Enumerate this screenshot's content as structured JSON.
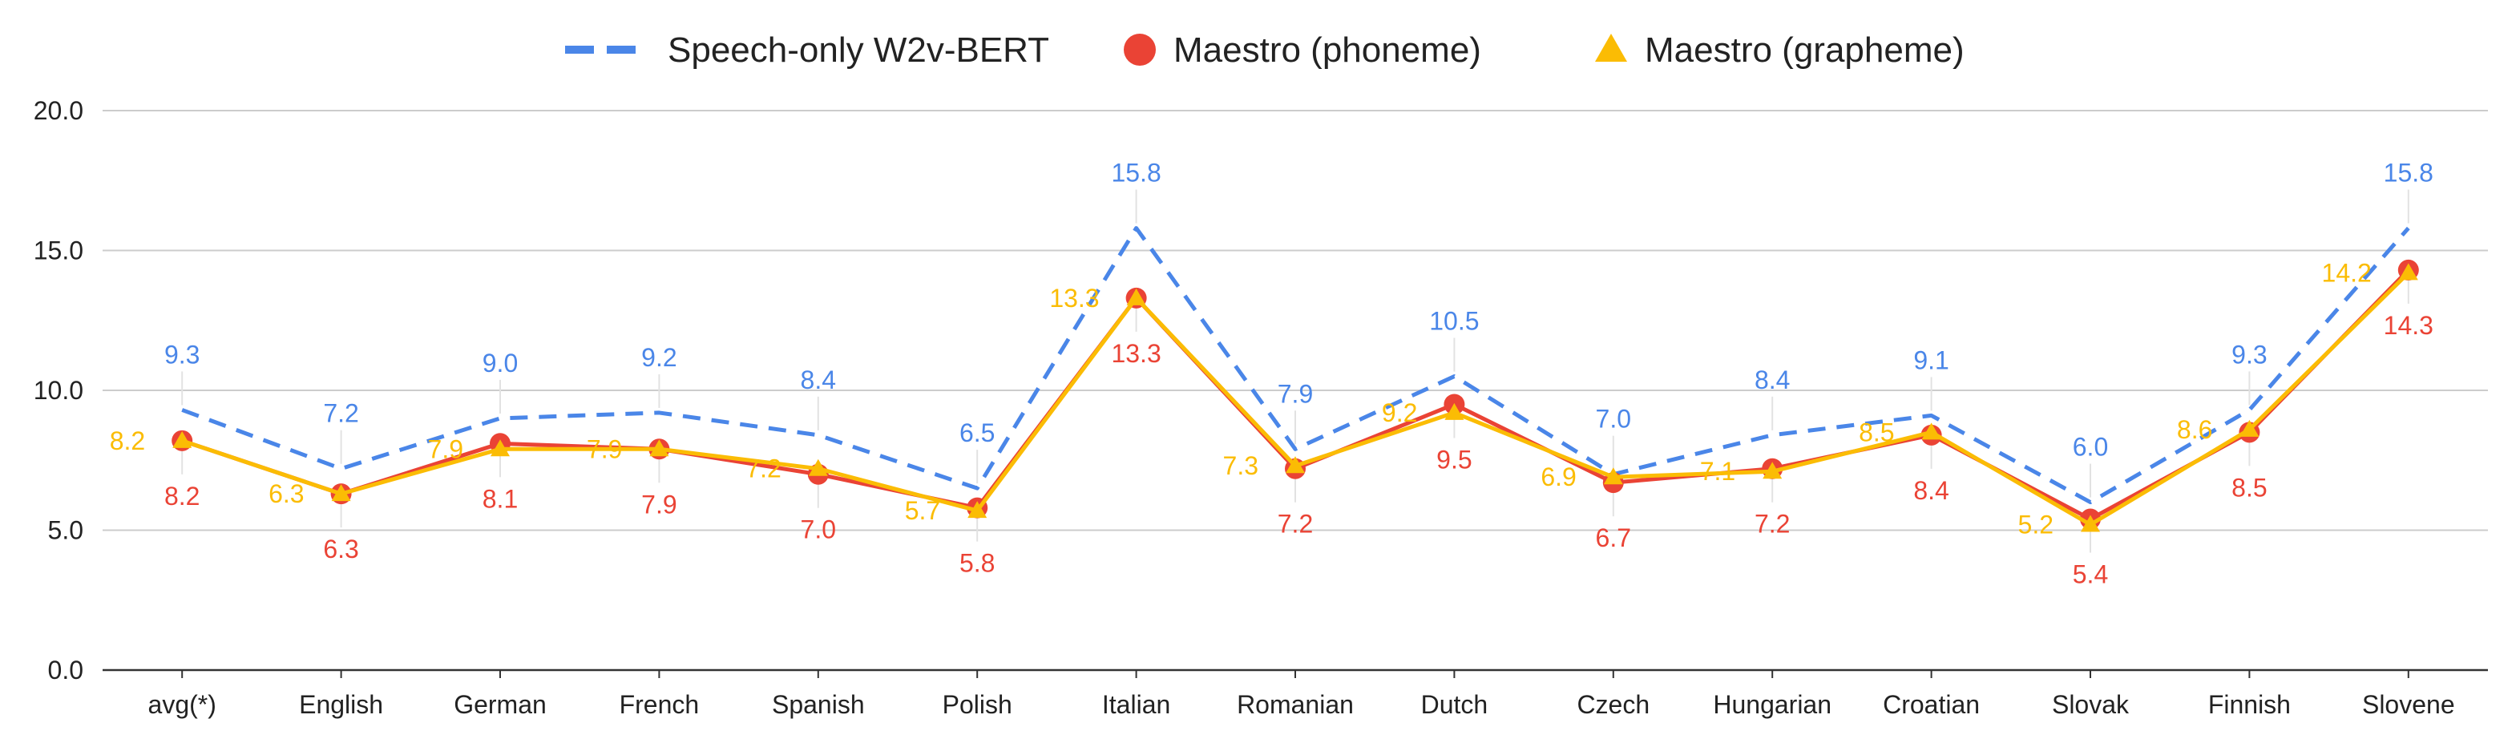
{
  "chart_data": {
    "type": "line",
    "title": "",
    "xlabel": "",
    "ylabel": "",
    "ylim": [
      0,
      20
    ],
    "yticks": [
      "0.0",
      "5.0",
      "10.0",
      "15.0",
      "20.0"
    ],
    "grid": true,
    "legend_position": "top-center",
    "categories": [
      "avg(*)",
      "English",
      "German",
      "French",
      "Spanish",
      "Polish",
      "Italian",
      "Romanian",
      "Dutch",
      "Czech",
      "Hungarian",
      "Croatian",
      "Slovak",
      "Finnish",
      "Slovene"
    ],
    "series": [
      {
        "name": "Speech-only W2v-BERT",
        "color": "#4a86e8",
        "style": "dashed",
        "marker": "none",
        "values": [
          9.3,
          7.2,
          9.0,
          9.2,
          8.4,
          6.5,
          15.8,
          7.9,
          10.5,
          7.0,
          8.4,
          9.1,
          6.0,
          9.3,
          15.8
        ],
        "labels": [
          "9.3",
          "7.2",
          "9.0",
          "9.2",
          "8.4",
          "6.5",
          "15.8",
          "7.9",
          "10.5",
          "7.0",
          "8.4",
          "9.1",
          "6.0",
          "9.3",
          "15.8"
        ]
      },
      {
        "name": "Maestro (phoneme)",
        "color": "#ea4335",
        "style": "solid",
        "marker": "circle",
        "values": [
          8.2,
          6.3,
          8.1,
          7.9,
          7.0,
          5.8,
          13.3,
          7.2,
          9.5,
          6.7,
          7.2,
          8.4,
          5.4,
          8.5,
          14.3
        ],
        "labels": [
          "8.2",
          "6.3",
          "8.1",
          "7.9",
          "7.0",
          "5.8",
          "13.3",
          "7.2",
          "9.5",
          "6.7",
          "7.2",
          "8.4",
          "5.4",
          "8.5",
          "14.3"
        ]
      },
      {
        "name": "Maestro (grapheme)",
        "color": "#fbbc04",
        "style": "solid",
        "marker": "triangle",
        "values": [
          8.2,
          6.3,
          7.9,
          7.9,
          7.2,
          5.7,
          13.3,
          7.3,
          9.2,
          6.9,
          7.1,
          8.5,
          5.2,
          8.6,
          14.2
        ],
        "labels": [
          "8.2",
          "6.3",
          "7.9",
          "7.9",
          "7.2",
          "5.7",
          "13.3",
          "7.3",
          "9.2",
          "6.9",
          "7.1",
          "8.5",
          "5.2",
          "8.6",
          "14.2"
        ]
      }
    ]
  }
}
